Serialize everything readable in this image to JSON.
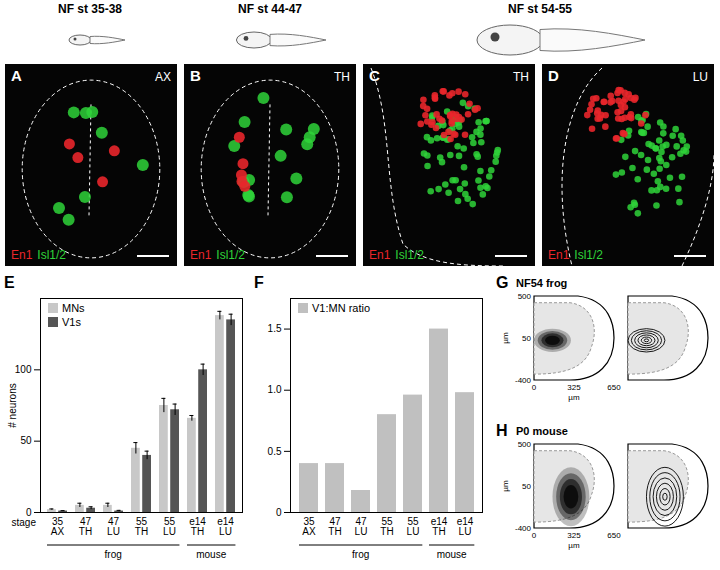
{
  "figure": {
    "stages": [
      "NF st 35-38",
      "NF st 44-47",
      "NF st 54-55"
    ],
    "images": [
      {
        "panel": "A",
        "region": "AX"
      },
      {
        "panel": "B",
        "region": "TH"
      },
      {
        "panel": "C",
        "region": "TH"
      },
      {
        "panel": "D",
        "region": "LU"
      }
    ],
    "stain_labels": [
      {
        "text": "En1",
        "color": "#e8262b"
      },
      {
        "text": "Isl1/2",
        "color": "#2fd33a"
      }
    ],
    "density_panels": [
      {
        "panel": "G",
        "title": "NF54 frog",
        "xlim": [
          0,
          650
        ],
        "ylim": [
          -400,
          500
        ],
        "xticks": [
          0,
          325,
          650
        ],
        "yticks": [
          500,
          50,
          -400
        ],
        "unit": "µm",
        "cloud": {
          "x": [
            0,
            300
          ],
          "y": [
            -100,
            150
          ]
        }
      },
      {
        "panel": "H",
        "title": "P0 mouse",
        "xlim": [
          0,
          650
        ],
        "ylim": [
          -400,
          500
        ],
        "xticks": [
          0,
          325,
          650
        ],
        "yticks": [
          500,
          50,
          -400
        ],
        "unit": "µm",
        "cloud": {
          "x": [
            150,
            450
          ],
          "y": [
            -380,
            250
          ]
        }
      }
    ]
  },
  "chart_data": [
    {
      "panel": "E",
      "type": "bar",
      "ylabel": "# neurons",
      "xlabel": "stage",
      "categories": [
        "35\nAX",
        "47\nTH",
        "47\nLU",
        "55\nTH",
        "55\nLU",
        "e14\nTH",
        "e14\nLU"
      ],
      "group_labels": [
        "frog",
        "frog",
        "frog",
        "frog",
        "frog",
        "mouse",
        "mouse"
      ],
      "ylim": [
        0,
        150
      ],
      "yticks": [
        0,
        50,
        100
      ],
      "legend": "top-left",
      "series": [
        {
          "name": "MNs",
          "color": "#c8c8c8",
          "values": [
            2,
            5,
            5,
            45,
            75,
            66,
            138
          ],
          "errors": [
            0.5,
            1.5,
            1.5,
            4,
            5,
            2,
            3
          ]
        },
        {
          "name": "V1s",
          "color": "#555555",
          "values": [
            1,
            3,
            1,
            40,
            72,
            100,
            135
          ],
          "errors": [
            0.3,
            1,
            0.5,
            3,
            4,
            4,
            4
          ]
        }
      ]
    },
    {
      "panel": "F",
      "type": "bar",
      "categories": [
        "35\nAX",
        "47\nTH",
        "47\nLU",
        "55\nTH",
        "55\nLU",
        "e14\nTH",
        "e14\nLU"
      ],
      "group_labels": [
        "frog",
        "frog",
        "frog",
        "frog",
        "frog",
        "mouse",
        "mouse"
      ],
      "ylim": [
        0,
        1.75
      ],
      "yticks": [
        0,
        0.5,
        {
          "value": 1,
          "label": "1.0"
        },
        1.5
      ],
      "legend": "top-left",
      "series": [
        {
          "name": "V1:MN ratio",
          "color": "#c0c0c0",
          "values": [
            0.4,
            0.4,
            0.18,
            0.8,
            0.96,
            1.5,
            0.98
          ]
        }
      ]
    }
  ]
}
